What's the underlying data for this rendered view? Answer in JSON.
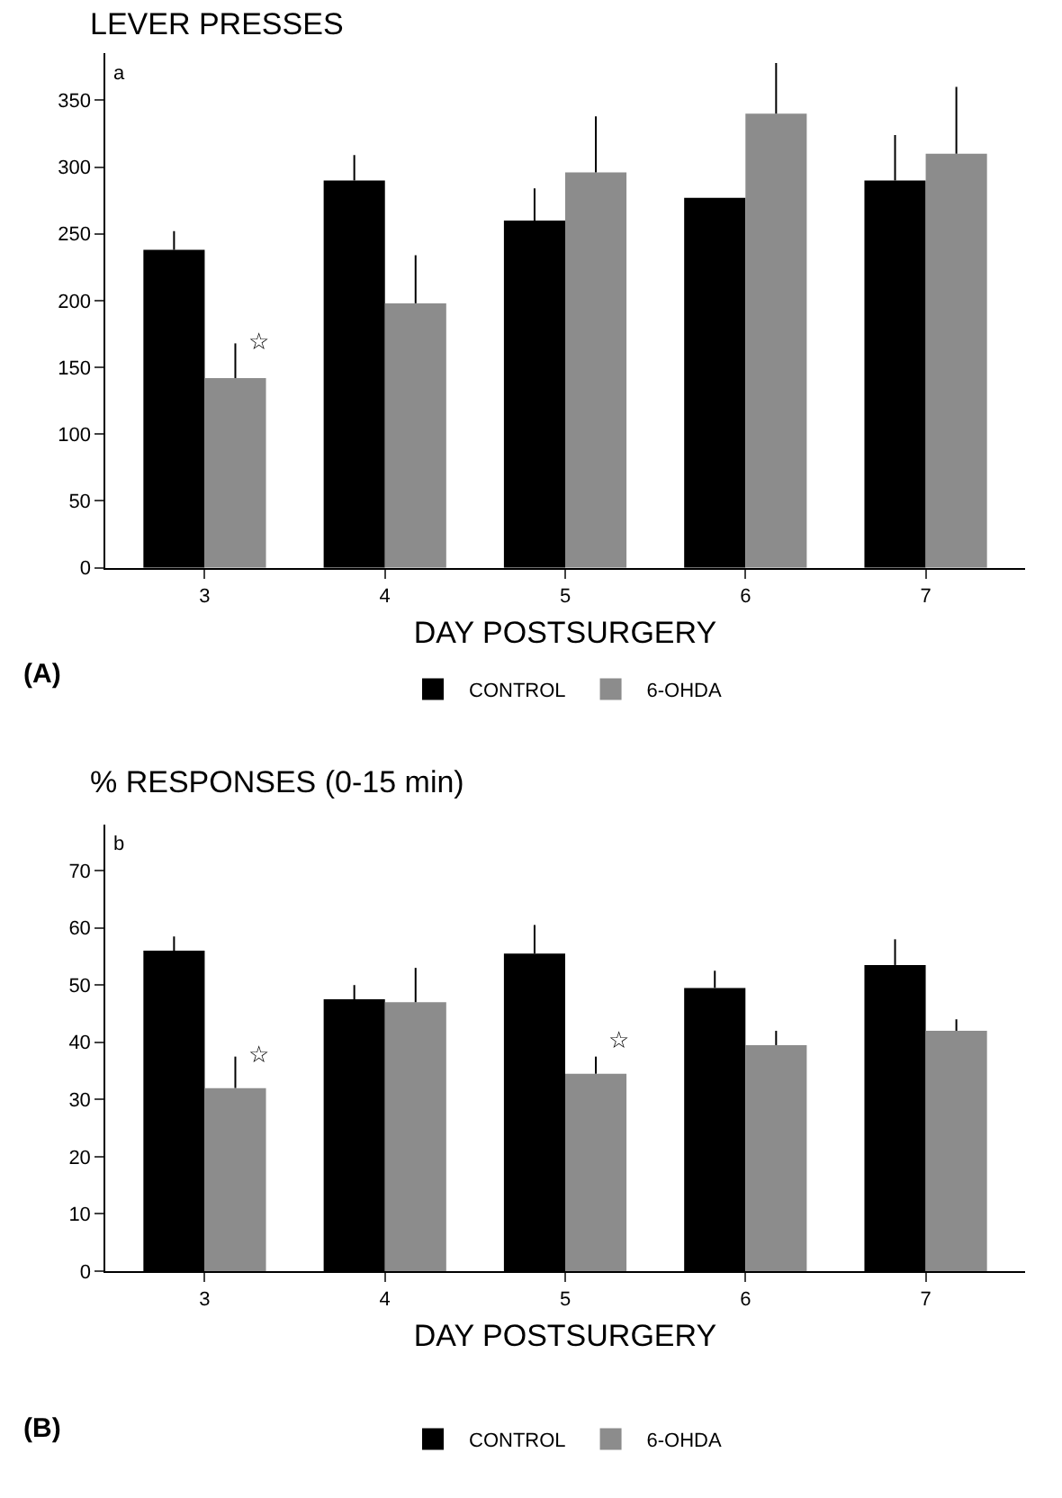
{
  "chart_data": [
    {
      "type": "bar",
      "title": "LEVER PRESSES",
      "xlabel": "DAY POSTSURGERY",
      "categories": [
        "3",
        "4",
        "5",
        "6",
        "7"
      ],
      "series": [
        {
          "name": "CONTROL",
          "color": "#000000",
          "values": [
            238,
            290,
            260,
            277,
            290
          ],
          "errors": [
            [
              238,
              252
            ],
            [
              290,
              309
            ],
            [
              260,
              284
            ],
            null,
            [
              290,
              324
            ]
          ]
        },
        {
          "name": "6-OHDA",
          "color": "#8c8c8c",
          "values": [
            142,
            198,
            296,
            340,
            310
          ],
          "errors": [
            [
              142,
              168
            ],
            [
              198,
              234
            ],
            [
              296,
              338
            ],
            [
              340,
              378
            ],
            [
              310,
              360
            ]
          ]
        }
      ],
      "ylim": [
        0,
        385
      ],
      "yticks": [
        0,
        50,
        100,
        150,
        200,
        250,
        300,
        350
      ],
      "legend": "bottom",
      "annotations": [
        "a",
        "(A)",
        {
          "text": "☆",
          "x": "3",
          "y": 155
        }
      ]
    },
    {
      "type": "bar",
      "title": "% RESPONSES (0-15 min)",
      "xlabel": "DAY POSTSURGERY",
      "categories": [
        "3",
        "4",
        "5",
        "6",
        "7"
      ],
      "series": [
        {
          "name": "CONTROL",
          "color": "#000000",
          "values": [
            56,
            47.5,
            55.5,
            49.5,
            53.5
          ],
          "errors": [
            [
              56,
              58.5
            ],
            [
              47.5,
              50
            ],
            [
              55.5,
              60.5
            ],
            [
              49.5,
              52.5
            ],
            [
              53.5,
              58
            ]
          ]
        },
        {
          "name": "6-OHDA",
          "color": "#8c8c8c",
          "values": [
            32,
            47,
            34.5,
            39.5,
            42
          ],
          "errors": [
            [
              32,
              37.5
            ],
            [
              47,
              53
            ],
            [
              34.5,
              37.5
            ],
            [
              39.5,
              42
            ],
            [
              42,
              44
            ]
          ]
        }
      ],
      "ylim": [
        0,
        78
      ],
      "yticks": [
        0,
        10,
        20,
        30,
        40,
        50,
        60,
        70
      ],
      "legend": "bottom",
      "annotations": [
        "b",
        "(B)",
        {
          "text": "☆",
          "x": "3",
          "y": 34.5
        },
        {
          "text": "☆",
          "x": "5",
          "y": 37
        }
      ]
    }
  ]
}
